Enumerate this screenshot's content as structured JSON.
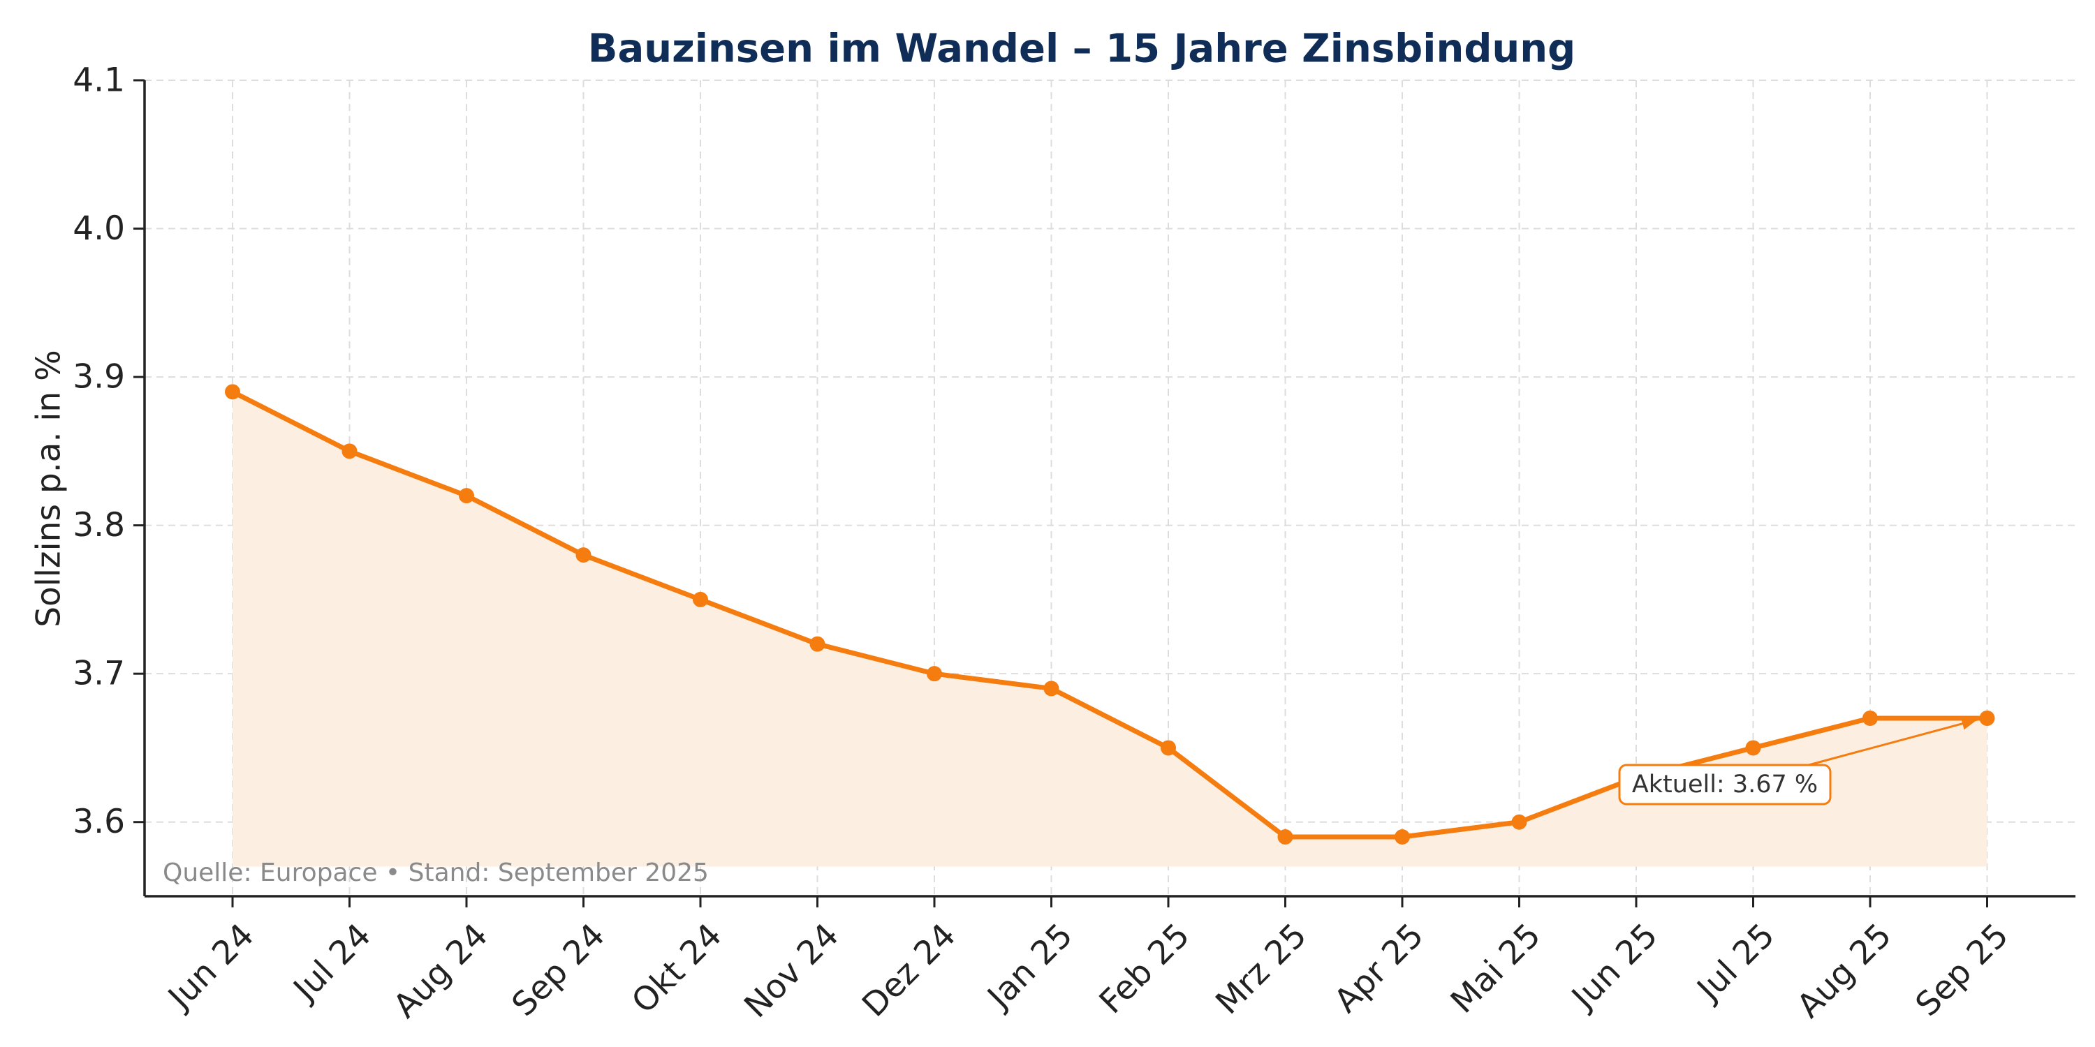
{
  "chart_data": {
    "type": "line",
    "title": "Bauzinsen im Wandel – 15 Jahre Zinsbindung",
    "xlabel": "",
    "ylabel": "Sollzins p.a. in %",
    "categories": [
      "Jun 24",
      "Jul 24",
      "Aug 24",
      "Sep 24",
      "Okt 24",
      "Nov 24",
      "Dez 24",
      "Jan 25",
      "Feb 25",
      "Mrz 25",
      "Apr 25",
      "Mai 25",
      "Jun 25",
      "Jul 25",
      "Aug 25",
      "Sep 25"
    ],
    "series": [
      {
        "values": [
          3.89,
          3.85,
          3.82,
          3.78,
          3.75,
          3.72,
          3.7,
          3.69,
          3.65,
          3.59,
          3.59,
          3.6,
          3.63,
          3.65,
          3.67,
          3.67
        ]
      }
    ],
    "ylim": [
      3.55,
      4.1
    ],
    "yticks": [
      "3.6",
      "3.7",
      "3.8",
      "3.9",
      "4.0",
      "4.1"
    ],
    "grid": true,
    "area_fill": true,
    "annotation": {
      "text": "Aktuell: 3.67 %",
      "target_category": "Sep 25"
    },
    "source_note": "Quelle: Europace • Stand: September 2025",
    "colors": {
      "line": "#f57c0f",
      "fill": "#fdeee2",
      "title": "#0f2d57"
    }
  }
}
